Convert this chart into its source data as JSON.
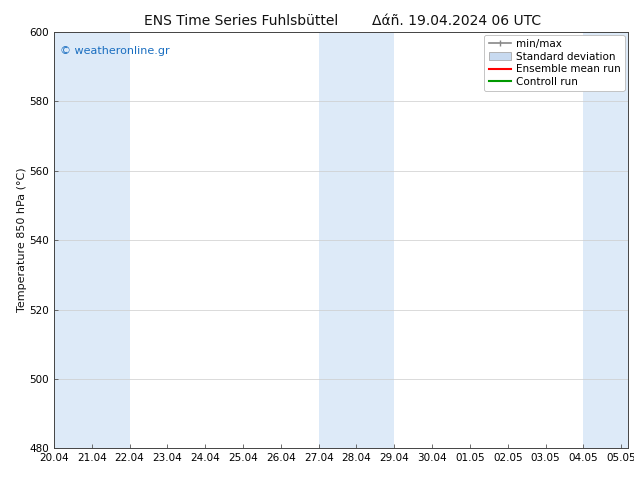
{
  "title_left": "ENS Time Series Fuhlsbüttel",
  "title_right": "Δάñ. 19.04.2024 06 UTC",
  "ylabel": "Temperature 850 hPa (°C)",
  "ylim": [
    480,
    600
  ],
  "yticks": [
    480,
    500,
    520,
    540,
    560,
    580,
    600
  ],
  "xtick_labels": [
    "20.04",
    "21.04",
    "22.04",
    "23.04",
    "24.04",
    "25.04",
    "26.04",
    "27.04",
    "28.04",
    "29.04",
    "30.04",
    "01.05",
    "02.05",
    "03.05",
    "04.05",
    "05.05"
  ],
  "background_color": "#ffffff",
  "plot_bg_color": "#ffffff",
  "shaded_bands_x": [
    0,
    2,
    7,
    9,
    14,
    15.17
  ],
  "shaded_band_color": "#ddeaf8",
  "watermark_text": "© weatheronline.gr",
  "watermark_color": "#1a6ec0",
  "legend_labels": [
    "min/max",
    "Standard deviation",
    "Ensemble mean run",
    "Controll run"
  ],
  "minmax_color": "#888888",
  "std_dev_color": "#c8daf0",
  "ensemble_color": "#ff0000",
  "control_color": "#009900",
  "tick_fontsize": 7.5,
  "title_fontsize": 10,
  "ylabel_fontsize": 8,
  "legend_fontsize": 7.5,
  "watermark_fontsize": 8
}
